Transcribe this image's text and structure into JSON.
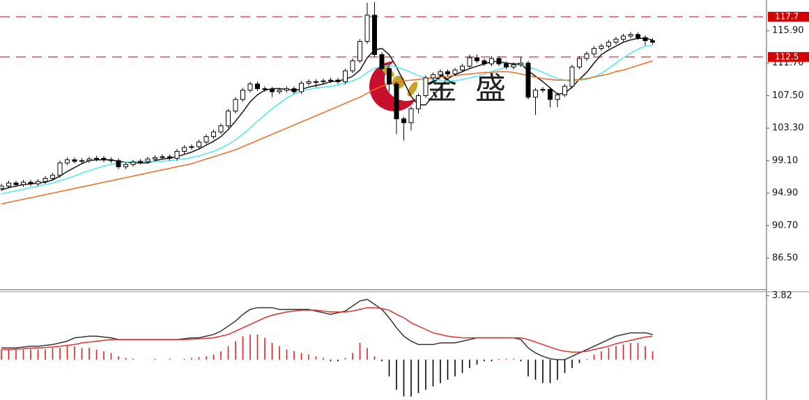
{
  "watermark": "金 盛",
  "chart_data": [
    {
      "type": "candlestick",
      "open": [
        95.5,
        95.8,
        96.2,
        96.0,
        96.3,
        96.1,
        96.4,
        96.8,
        97.2,
        98.8,
        99.2,
        99.0,
        99.1,
        99.3,
        99.4,
        99.2,
        99.1,
        98.3,
        98.6,
        98.9,
        99.0,
        99.3,
        99.5,
        99.6,
        99.4,
        100.3,
        100.8,
        100.9,
        101.5,
        102.2,
        102.8,
        103.6,
        105.5,
        107.0,
        108.2,
        109.0,
        108.4,
        108.3,
        108.0,
        108.2,
        108.4,
        108.0,
        109.1,
        109.3,
        109.3,
        109.4,
        109.5,
        109.3,
        110.7,
        112.0,
        114.5,
        117.9,
        112.8,
        111.0,
        109.0,
        104.5,
        104.0,
        105.8,
        107.5,
        109.8,
        110.2,
        110.6,
        110.3,
        110.8,
        111.3,
        112.4,
        112.0,
        111.6,
        112.3,
        111.6,
        111.2,
        111.5,
        111.7,
        107.3,
        108.2,
        108.3,
        107.0,
        107.6,
        108.7,
        111.2,
        112.3,
        112.9,
        113.6,
        113.9,
        114.4,
        114.8,
        115.2,
        115.4,
        115.0,
        114.6
      ],
      "high": [
        96.1,
        96.5,
        96.5,
        96.6,
        96.6,
        96.7,
        97.1,
        97.5,
        99.1,
        99.5,
        99.5,
        99.4,
        99.6,
        99.7,
        99.7,
        99.5,
        99.4,
        98.9,
        99.2,
        99.3,
        99.6,
        99.8,
        99.9,
        99.9,
        100.6,
        101.1,
        101.2,
        101.8,
        102.5,
        103.1,
        103.9,
        105.8,
        107.3,
        108.5,
        109.3,
        109.3,
        108.7,
        108.6,
        108.5,
        108.7,
        108.7,
        109.4,
        109.6,
        109.6,
        109.7,
        109.8,
        109.8,
        111.0,
        112.3,
        114.8,
        119.5,
        119.6,
        113.1,
        111.3,
        109.3,
        104.8,
        106.1,
        107.8,
        110.1,
        110.5,
        110.9,
        110.9,
        111.1,
        111.6,
        112.8,
        112.8,
        112.3,
        112.6,
        112.6,
        111.9,
        111.8,
        112.5,
        112.0,
        108.5,
        108.6,
        108.6,
        107.9,
        109.0,
        111.5,
        112.6,
        113.2,
        113.9,
        114.2,
        114.7,
        115.1,
        115.5,
        115.7,
        115.7,
        115.3,
        114.9
      ],
      "low": [
        95.2,
        95.5,
        95.7,
        95.7,
        95.8,
        95.8,
        96.1,
        96.5,
        96.9,
        98.5,
        98.7,
        98.7,
        98.8,
        99.0,
        98.9,
        98.8,
        98.0,
        98.0,
        98.3,
        98.6,
        98.7,
        99.0,
        99.2,
        99.1,
        99.1,
        100.0,
        100.5,
        100.6,
        101.2,
        101.9,
        102.5,
        103.3,
        105.2,
        106.7,
        107.9,
        108.1,
        108.0,
        107.3,
        107.7,
        107.9,
        107.7,
        107.7,
        108.8,
        108.6,
        109.0,
        109.1,
        109.0,
        109.0,
        110.4,
        111.7,
        114.2,
        112.5,
        110.7,
        108.0,
        102.5,
        101.7,
        103.0,
        105.2,
        107.2,
        109.5,
        109.9,
        110.0,
        110.0,
        110.5,
        111.0,
        111.7,
        111.3,
        111.3,
        111.3,
        110.9,
        110.9,
        111.2,
        107.0,
        105.0,
        107.9,
        106.0,
        106.0,
        107.3,
        108.4,
        110.9,
        112.0,
        112.6,
        113.3,
        113.6,
        114.1,
        114.5,
        114.9,
        114.7,
        114.0,
        114.1
      ],
      "close": [
        95.8,
        96.2,
        96.0,
        96.3,
        96.1,
        96.4,
        96.8,
        97.2,
        98.8,
        99.2,
        99.0,
        99.1,
        99.3,
        99.4,
        99.2,
        99.1,
        98.3,
        98.6,
        98.9,
        99.0,
        99.3,
        99.5,
        99.6,
        99.4,
        100.3,
        100.8,
        100.9,
        101.5,
        102.2,
        102.8,
        103.6,
        105.5,
        107.0,
        108.2,
        109.0,
        108.4,
        108.3,
        108.0,
        108.2,
        108.4,
        108.0,
        109.1,
        109.3,
        109.3,
        109.4,
        109.5,
        109.3,
        110.7,
        112.0,
        114.5,
        117.9,
        112.8,
        111.0,
        109.0,
        104.5,
        104.0,
        105.8,
        107.5,
        109.8,
        110.2,
        110.6,
        110.3,
        110.8,
        111.3,
        112.4,
        112.0,
        111.6,
        112.3,
        111.6,
        111.2,
        111.5,
        111.7,
        107.3,
        108.2,
        108.3,
        107.0,
        107.6,
        108.7,
        111.2,
        112.3,
        112.9,
        113.6,
        113.9,
        114.4,
        114.8,
        115.2,
        115.4,
        115.0,
        114.6,
        114.4
      ],
      "series": [
        {
          "color": "#111111",
          "values": [
            95.3,
            95.6,
            95.8,
            96.0,
            96.1,
            96.2,
            96.3,
            96.6,
            97.1,
            97.7,
            98.2,
            98.7,
            99.1,
            99.2,
            99.2,
            99.2,
            99.0,
            98.9,
            98.8,
            98.8,
            98.8,
            99.1,
            99.3,
            99.4,
            99.6,
            99.9,
            100.2,
            100.6,
            101.1,
            101.6,
            102.2,
            103.1,
            104.2,
            105.4,
            106.7,
            107.6,
            108.2,
            108.4,
            108.4,
            108.3,
            108.2,
            108.3,
            108.6,
            108.8,
            109.0,
            109.3,
            109.4,
            109.6,
            110.0,
            110.8,
            112.4,
            113.4,
            113.6,
            112.8,
            111.2,
            109.3,
            107.4,
            106.3,
            106.3,
            107.5,
            108.6,
            109.7,
            110.2,
            110.6,
            111.0,
            111.3,
            111.6,
            111.9,
            111.9,
            111.7,
            111.6,
            111.6,
            110.7,
            110.0,
            109.3,
            108.5,
            107.7,
            107.8,
            108.6,
            109.6,
            110.5,
            111.7,
            112.8,
            113.4,
            113.9,
            114.4,
            114.7,
            114.9,
            114.9,
            114.7
          ]
        },
        {
          "color": "#4de8f0",
          "values": [
            94.8,
            95.0,
            95.2,
            95.4,
            95.6,
            95.8,
            96.0,
            96.2,
            96.5,
            96.8,
            97.1,
            97.5,
            97.8,
            98.1,
            98.4,
            98.6,
            98.8,
            98.9,
            99.0,
            99.0,
            99.0,
            99.0,
            99.0,
            99.1,
            99.2,
            99.3,
            99.5,
            99.7,
            100.0,
            100.3,
            100.7,
            101.2,
            101.8,
            102.5,
            103.3,
            104.2,
            105.0,
            105.8,
            106.5,
            107.2,
            107.7,
            108.1,
            108.3,
            108.5,
            108.6,
            108.7,
            108.9,
            109.1,
            109.4,
            109.8,
            110.5,
            111.0,
            111.3,
            111.4,
            111.2,
            110.9,
            110.5,
            110.1,
            109.8,
            109.6,
            109.5,
            109.4,
            109.4,
            109.6,
            109.8,
            110.0,
            110.3,
            110.6,
            110.9,
            111.2,
            111.4,
            111.5,
            111.2,
            110.9,
            110.5,
            110.1,
            109.7,
            109.5,
            109.4,
            109.5,
            109.6,
            109.9,
            110.4,
            111.0,
            111.7,
            112.4,
            113.0,
            113.5,
            113.9,
            114.0
          ]
        },
        {
          "color": "#f06a22",
          "values": [
            93.5,
            93.7,
            93.9,
            94.1,
            94.3,
            94.5,
            94.7,
            94.9,
            95.1,
            95.3,
            95.5,
            95.7,
            95.9,
            96.1,
            96.3,
            96.5,
            96.7,
            96.9,
            97.1,
            97.3,
            97.5,
            97.7,
            97.9,
            98.1,
            98.3,
            98.5,
            98.7,
            99.0,
            99.3,
            99.6,
            99.9,
            100.2,
            100.5,
            100.9,
            101.3,
            101.7,
            102.1,
            102.5,
            102.9,
            103.3,
            103.7,
            104.1,
            104.5,
            104.9,
            105.3,
            105.7,
            106.1,
            106.5,
            106.9,
            107.3,
            107.8,
            108.3,
            108.7,
            109.0,
            109.2,
            109.4,
            109.5,
            109.6,
            109.7,
            109.8,
            109.9,
            110.0,
            110.1,
            110.2,
            110.3,
            110.4,
            110.5,
            110.5,
            110.6,
            110.6,
            110.5,
            110.3,
            110.1,
            109.9,
            109.7,
            109.6,
            109.5,
            109.5,
            109.5,
            109.6,
            109.7,
            109.9,
            110.1,
            110.3,
            110.6,
            110.8,
            111.1,
            111.4,
            111.7,
            112.0
          ]
        }
      ],
      "ylim": [
        82.45,
        119.86
      ],
      "yticks": [
        {
          "value": 115.9,
          "label": "115.90"
        },
        {
          "value": 111.7,
          "label": "111.70"
        },
        {
          "value": 107.5,
          "label": "107.50"
        },
        {
          "value": 103.3,
          "label": "103.30"
        },
        {
          "value": 99.1,
          "label": "99.10"
        },
        {
          "value": 94.9,
          "label": "94.90"
        },
        {
          "value": 90.7,
          "label": "90.70"
        },
        {
          "value": 86.5,
          "label": "86.50"
        }
      ],
      "hlines": [
        117.7,
        112.5
      ],
      "hline_color": "#d40000",
      "up_color": "#ffffff",
      "down_color": "#000000"
    },
    {
      "type": "macd",
      "histogram": [
        0.6,
        0.6,
        0.6,
        0.6,
        0.6,
        0.6,
        0.6,
        0.7,
        0.7,
        0.8,
        0.8,
        0.7,
        0.7,
        0.6,
        0.5,
        0.4,
        0.2,
        0.1,
        0.05,
        0.0,
        0.0,
        0.05,
        0.0,
        0.05,
        0.0,
        0.05,
        0.1,
        0.15,
        0.2,
        0.3,
        0.5,
        0.8,
        1.1,
        1.4,
        1.5,
        1.5,
        1.3,
        1.0,
        0.8,
        0.6,
        0.5,
        0.4,
        0.3,
        0.2,
        0.1,
        -0.1,
        -0.1,
        0.1,
        0.4,
        1.0,
        0.7,
        0.2,
        -0.1,
        -1.0,
        -1.8,
        -2.2,
        -2.2,
        -2.0,
        -1.8,
        -1.6,
        -1.4,
        -1.2,
        -1.0,
        -0.8,
        -0.5,
        -0.3,
        -0.1,
        -0.1,
        0.05,
        0.05,
        0.05,
        -0.1,
        -1.0,
        -1.2,
        -1.4,
        -1.4,
        -1.2,
        -0.8,
        -0.5,
        -0.2,
        0.05,
        0.3,
        0.5,
        0.7,
        0.8,
        0.9,
        1.0,
        1.0,
        0.8,
        0.5
      ],
      "up_color": "#e02020",
      "down_color": "#000000",
      "series": [
        {
          "color": "#333333",
          "values": [
            0.7,
            0.7,
            0.7,
            0.75,
            0.8,
            0.8,
            0.85,
            0.9,
            1.0,
            1.1,
            1.3,
            1.35,
            1.4,
            1.4,
            1.35,
            1.3,
            1.2,
            1.2,
            1.2,
            1.2,
            1.2,
            1.2,
            1.2,
            1.2,
            1.2,
            1.25,
            1.3,
            1.3,
            1.4,
            1.5,
            1.7,
            2.0,
            2.3,
            2.7,
            3.0,
            3.1,
            3.1,
            3.1,
            3.0,
            3.0,
            3.0,
            3.0,
            3.0,
            2.9,
            2.8,
            2.7,
            2.8,
            2.9,
            3.2,
            3.5,
            3.6,
            3.3,
            3.0,
            2.5,
            1.9,
            1.4,
            1.1,
            0.9,
            0.9,
            0.9,
            1.0,
            1.0,
            1.0,
            1.1,
            1.2,
            1.3,
            1.3,
            1.3,
            1.3,
            1.3,
            1.3,
            1.2,
            0.7,
            0.4,
            0.2,
            0.05,
            0.0,
            0.0,
            0.2,
            0.4,
            0.6,
            0.8,
            1.0,
            1.2,
            1.4,
            1.5,
            1.6,
            1.6,
            1.6,
            1.5
          ]
        },
        {
          "color": "#e03030",
          "values": [
            0.6,
            0.6,
            0.62,
            0.65,
            0.68,
            0.7,
            0.72,
            0.75,
            0.8,
            0.85,
            0.9,
            1.0,
            1.05,
            1.1,
            1.15,
            1.2,
            1.2,
            1.2,
            1.2,
            1.2,
            1.2,
            1.2,
            1.2,
            1.2,
            1.2,
            1.2,
            1.22,
            1.24,
            1.27,
            1.3,
            1.4,
            1.5,
            1.7,
            1.9,
            2.1,
            2.3,
            2.5,
            2.65,
            2.75,
            2.85,
            2.9,
            2.95,
            2.95,
            2.95,
            2.9,
            2.85,
            2.85,
            2.85,
            2.9,
            3.0,
            3.1,
            3.1,
            3.05,
            2.95,
            2.7,
            2.5,
            2.2,
            2.0,
            1.8,
            1.6,
            1.5,
            1.4,
            1.35,
            1.3,
            1.3,
            1.3,
            1.3,
            1.3,
            1.3,
            1.3,
            1.3,
            1.3,
            1.2,
            1.05,
            0.9,
            0.75,
            0.6,
            0.5,
            0.45,
            0.45,
            0.5,
            0.6,
            0.7,
            0.8,
            0.95,
            1.05,
            1.15,
            1.25,
            1.35,
            1.4
          ]
        }
      ],
      "ylim": [
        -2.41,
        4.11
      ],
      "yticks": [
        3.82
      ]
    }
  ]
}
